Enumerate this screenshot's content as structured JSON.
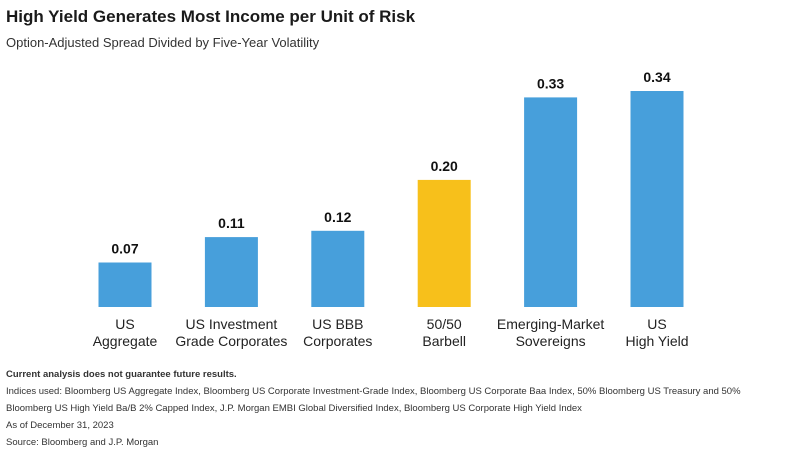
{
  "header": {
    "title": "High Yield Generates Most Income per Unit of Risk",
    "subtitle": "Option-Adjusted Spread Divided by Five-Year Volatility"
  },
  "chart_data": {
    "type": "bar",
    "title": "High Yield Generates Most Income per Unit of Risk",
    "subtitle": "Option-Adjusted Spread Divided by Five-Year Volatility",
    "categories": [
      [
        "US",
        "Aggregate"
      ],
      [
        "US Investment",
        "Grade Corporates"
      ],
      [
        "US BBB",
        "Corporates"
      ],
      [
        "50/50",
        "Barbell"
      ],
      [
        "Emerging-Market",
        "Sovereigns"
      ],
      [
        "US",
        "High Yield"
      ]
    ],
    "values": [
      0.07,
      0.11,
      0.12,
      0.2,
      0.33,
      0.34
    ],
    "value_labels": [
      "0.07",
      "0.11",
      "0.12",
      "0.20",
      "0.33",
      "0.34"
    ],
    "bar_colors": [
      "#479fdb",
      "#479fdb",
      "#479fdb",
      "#f7c01b",
      "#479fdb",
      "#479fdb"
    ],
    "ylim": [
      0,
      0.34
    ],
    "grid": false,
    "legend": "none",
    "xlabel": "",
    "ylabel": ""
  },
  "footnotes": {
    "analysis_note": "Current analysis does not guarantee future results.",
    "indices": "Indices used: Bloomberg US Aggregate Index, Bloomberg US Corporate Investment-Grade Index, Bloomberg US Corporate Baa Index, 50% Bloomberg US Treasury and 50% Bloomberg US High Yield Ba/B 2% Capped Index, J.P. Morgan EMBI Global Diversified Index, Bloomberg US Corporate High Yield Index",
    "as_of": "As of December 31, 2023",
    "source": "Source: Bloomberg and J.P. Morgan"
  }
}
